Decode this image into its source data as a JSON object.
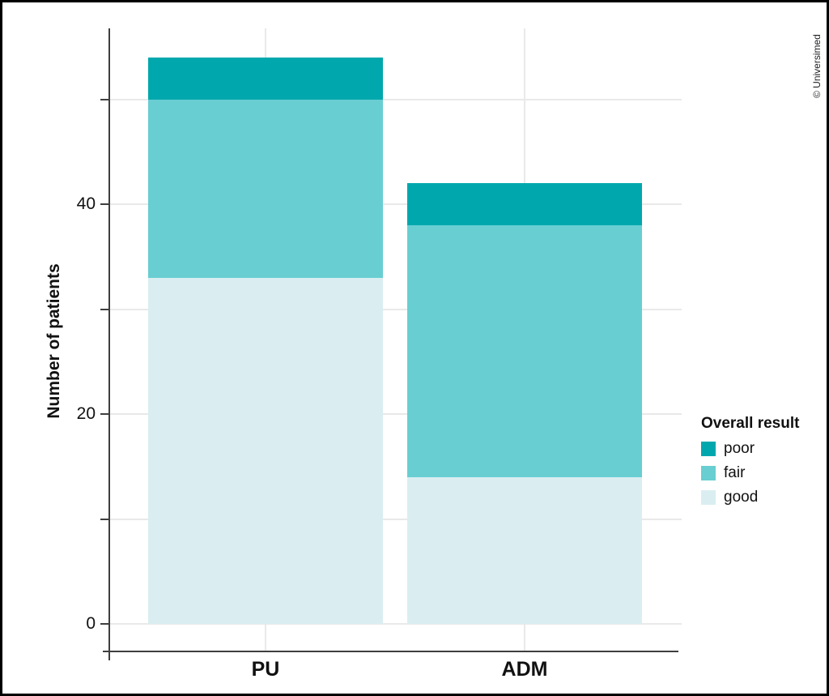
{
  "watermark": {
    "text": "© Universimed"
  },
  "legend": {
    "title": "Overall result",
    "items": [
      {
        "label": "poor",
        "color": "#00a8ad"
      },
      {
        "label": "fair",
        "color": "#68ced2"
      },
      {
        "label": "good",
        "color": "#daeef1"
      }
    ]
  },
  "chart_data": {
    "type": "bar",
    "subtype": "stacked",
    "title": "",
    "xlabel": "",
    "ylabel": "Number of patients",
    "categories": [
      "PU",
      "ADM"
    ],
    "series": [
      {
        "name": "good",
        "color": "#daeef1",
        "values": [
          33,
          14
        ]
      },
      {
        "name": "fair",
        "color": "#68ced2",
        "values": [
          17,
          24
        ]
      },
      {
        "name": "poor",
        "color": "#00a8ad",
        "values": [
          4,
          4
        ]
      }
    ],
    "stack_order_bottom_to_top": [
      "good",
      "fair",
      "poor"
    ],
    "totals": [
      54,
      42
    ],
    "ylim": [
      0,
      57
    ],
    "yticks": [
      0,
      10,
      20,
      30,
      40,
      50
    ],
    "ytick_labels": [
      "0",
      "",
      "20",
      "",
      "40",
      ""
    ],
    "grid": true,
    "legend_position": "right",
    "legend_title": "Overall result"
  },
  "colors": {
    "poor": "#00a8ad",
    "fair": "#68ced2",
    "good": "#daeef1",
    "gridline": "#e9e9e9",
    "axis_line": "#3f3f3f",
    "text": "#111111",
    "frame_border": "#000000"
  }
}
